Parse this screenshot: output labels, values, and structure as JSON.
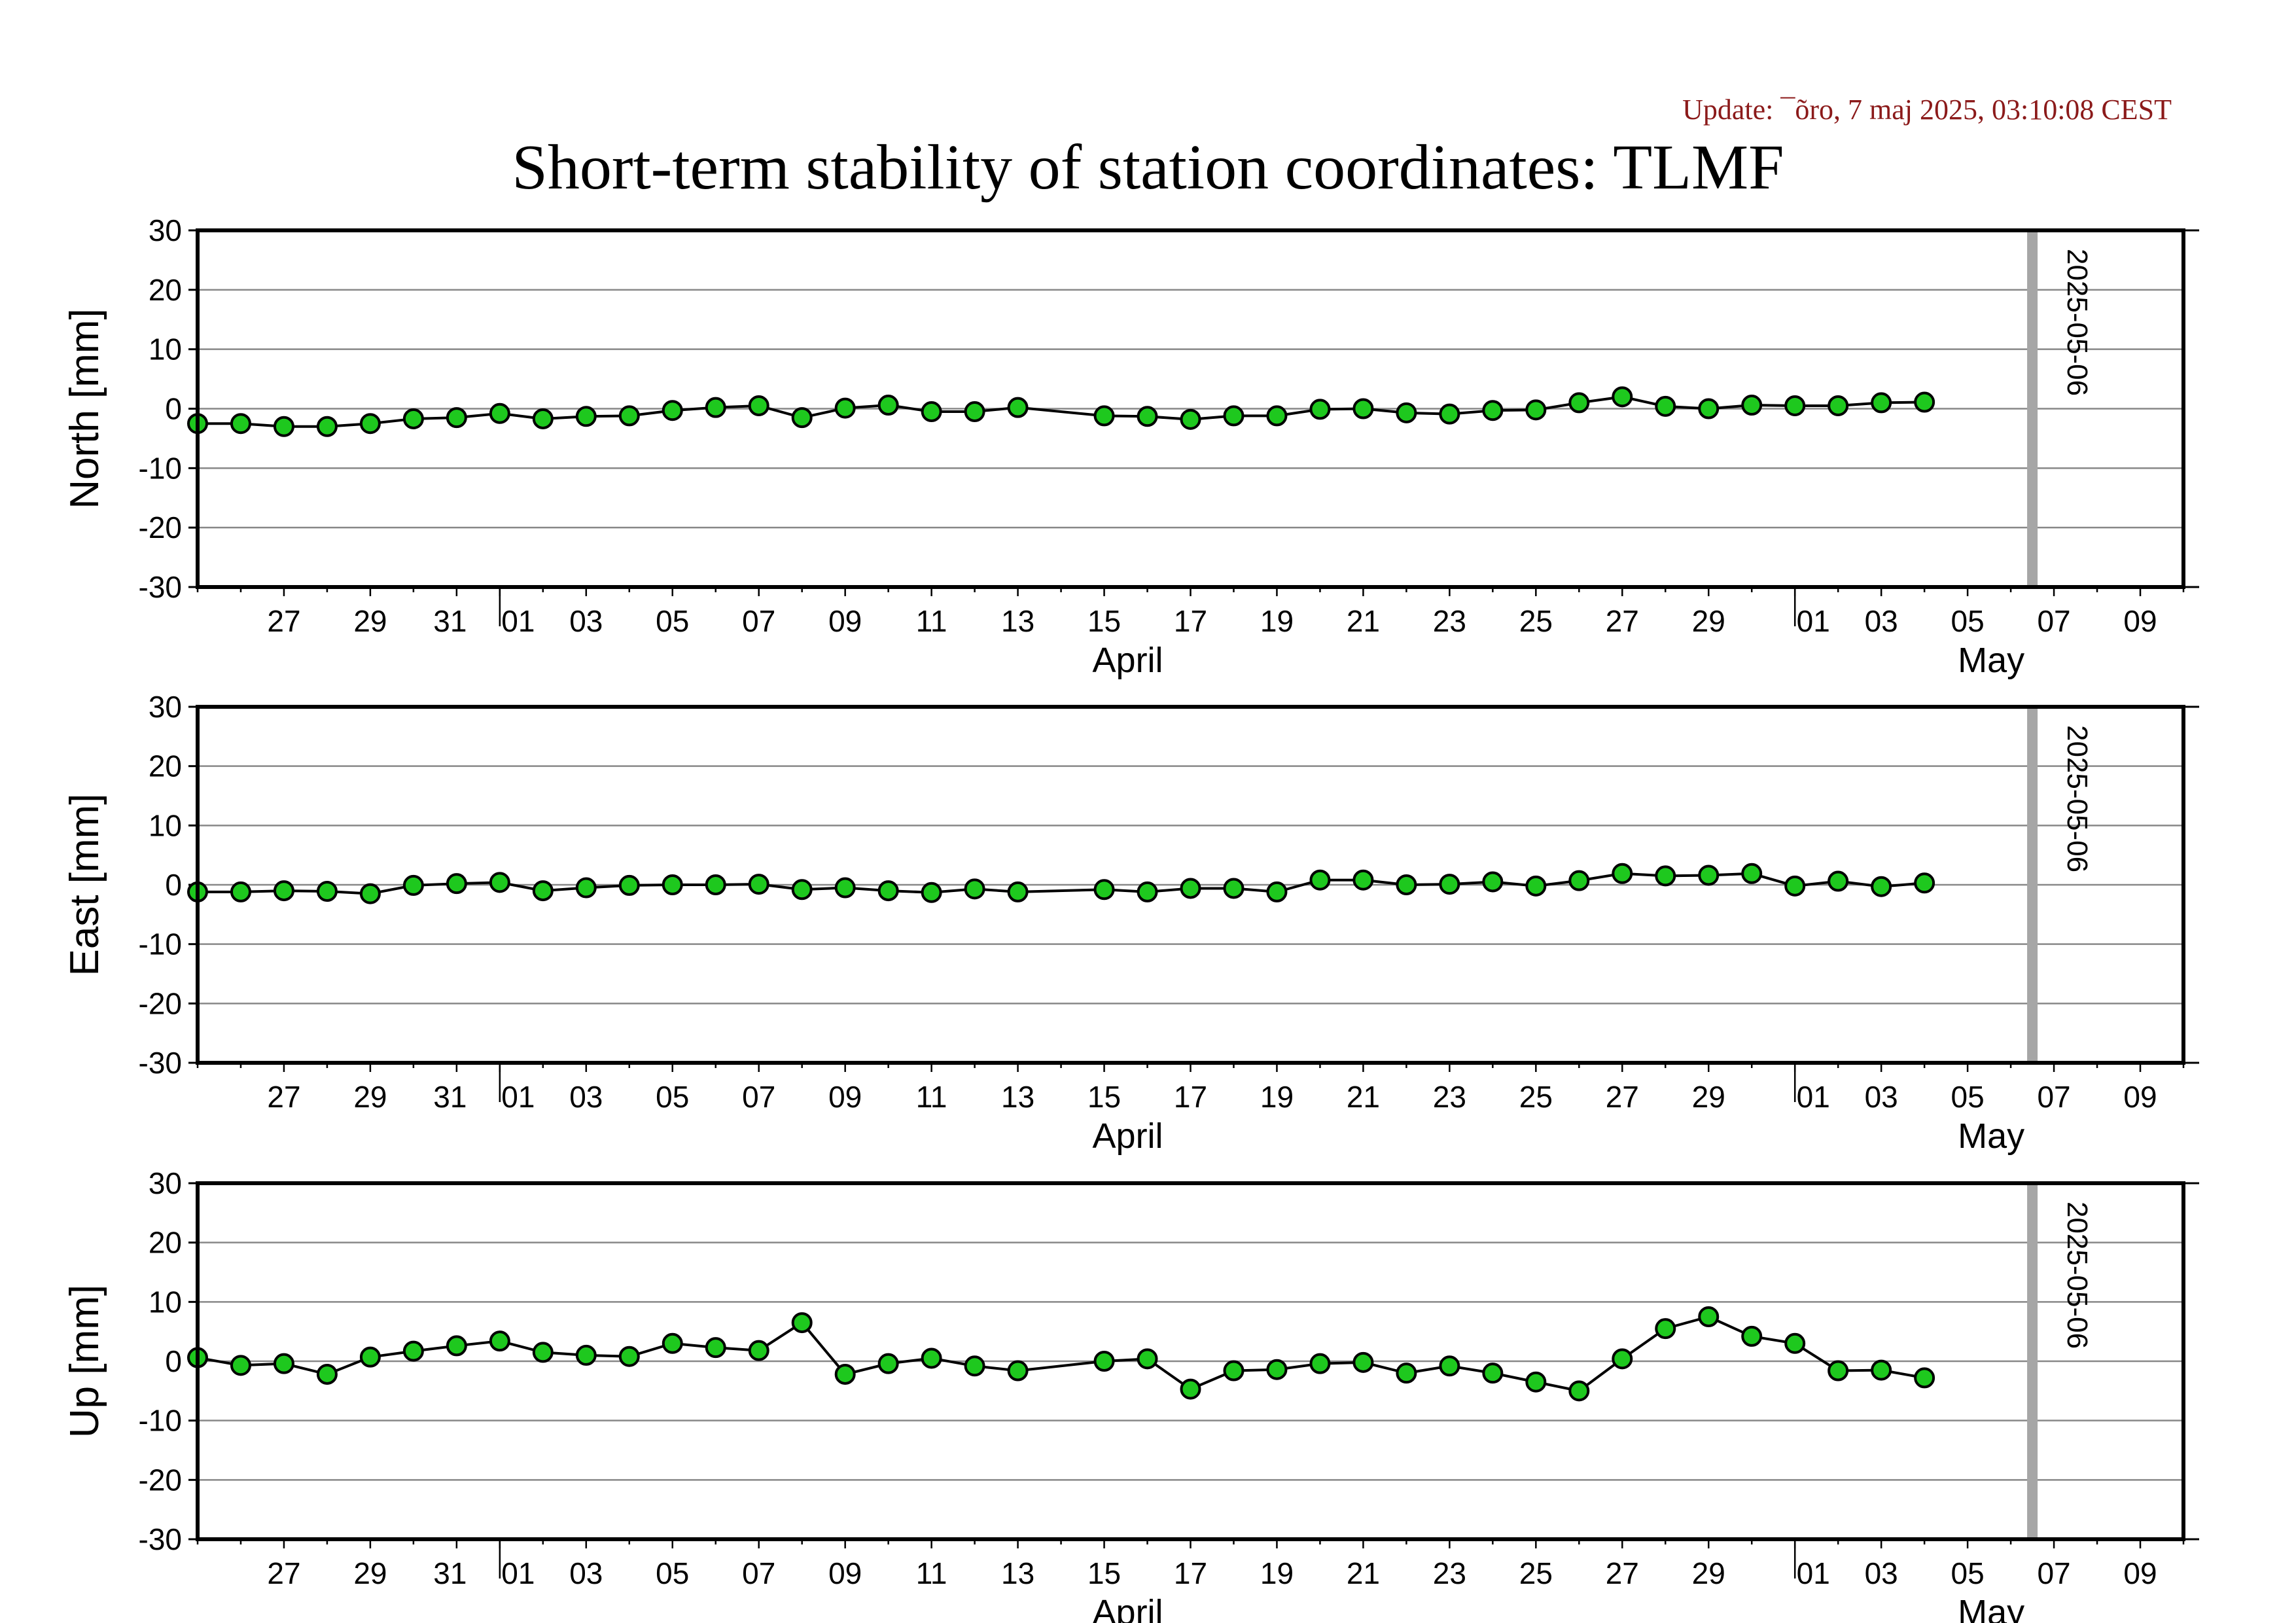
{
  "header": {
    "update": "Update: ¯õro, 7 maj 2025, 03:10:08 CEST",
    "title": "Short-term stability of station coordinates: TLMF"
  },
  "colors": {
    "marker_fill": "#1ec81e",
    "marker_edge": "#000000",
    "line": "#000000",
    "grid": "#888888",
    "current_day_line": "#a6a6a6",
    "update_text": "#8b1a1a"
  },
  "chart_data": [
    {
      "type": "line",
      "ylabel": "North [mm]",
      "ylim": [
        -30,
        30
      ],
      "yticks": [
        30,
        20,
        10,
        0,
        -10,
        -20,
        -30
      ],
      "grid": true,
      "xlim": [
        "2025-03-25",
        "2025-05-10"
      ],
      "x_tick_labels": [
        "27",
        "29",
        "31",
        "01",
        "03",
        "05",
        "07",
        "09",
        "11",
        "13",
        "15",
        "17",
        "19",
        "21",
        "23",
        "25",
        "27",
        "29",
        "01",
        "03",
        "05",
        "07",
        "09"
      ],
      "month_labels": [
        "April",
        "May"
      ],
      "marker_line": {
        "date": "2025-05-06",
        "label": "2025-05-06"
      },
      "series": [
        {
          "x": [
            "2025-03-25",
            "2025-03-26",
            "2025-03-27",
            "2025-03-28",
            "2025-03-29",
            "2025-03-30",
            "2025-03-31",
            "2025-04-01",
            "2025-04-02",
            "2025-04-03",
            "2025-04-04",
            "2025-04-05",
            "2025-04-06",
            "2025-04-07",
            "2025-04-08",
            "2025-04-09",
            "2025-04-10",
            "2025-04-11",
            "2025-04-12",
            "2025-04-13",
            "2025-04-15",
            "2025-04-16",
            "2025-04-17",
            "2025-04-18",
            "2025-04-19",
            "2025-04-20",
            "2025-04-21",
            "2025-04-22",
            "2025-04-23",
            "2025-04-24",
            "2025-04-25",
            "2025-04-26",
            "2025-04-27",
            "2025-04-28",
            "2025-04-29",
            "2025-04-30",
            "2025-05-01",
            "2025-05-02",
            "2025-05-03",
            "2025-05-04"
          ],
          "y": [
            -2.5,
            -2.5,
            -3,
            -3,
            -2.5,
            -1.7,
            -1.5,
            -0.8,
            -1.7,
            -1.3,
            -1.2,
            -0.3,
            0.2,
            0.5,
            -1.5,
            0.1,
            0.6,
            -0.5,
            -0.5,
            0.2,
            -1.2,
            -1.3,
            -1.8,
            -1.2,
            -1.2,
            -0.1,
            0,
            -0.7,
            -0.9,
            -0.3,
            -0.2,
            1,
            2,
            0.4,
            0,
            0.6,
            0.5,
            0.5,
            1,
            1.1
          ]
        }
      ]
    },
    {
      "type": "line",
      "ylabel": "East [mm]",
      "ylim": [
        -30,
        30
      ],
      "yticks": [
        30,
        20,
        10,
        0,
        -10,
        -20,
        -30
      ],
      "grid": true,
      "xlim": [
        "2025-03-25",
        "2025-05-10"
      ],
      "x_tick_labels": [
        "27",
        "29",
        "31",
        "01",
        "03",
        "05",
        "07",
        "09",
        "11",
        "13",
        "15",
        "17",
        "19",
        "21",
        "23",
        "25",
        "27",
        "29",
        "01",
        "03",
        "05",
        "07",
        "09"
      ],
      "month_labels": [
        "April",
        "May"
      ],
      "marker_line": {
        "date": "2025-05-06",
        "label": "2025-05-06"
      },
      "series": [
        {
          "x": [
            "2025-03-25",
            "2025-03-26",
            "2025-03-27",
            "2025-03-28",
            "2025-03-29",
            "2025-03-30",
            "2025-03-31",
            "2025-04-01",
            "2025-04-02",
            "2025-04-03",
            "2025-04-04",
            "2025-04-05",
            "2025-04-06",
            "2025-04-07",
            "2025-04-08",
            "2025-04-09",
            "2025-04-10",
            "2025-04-11",
            "2025-04-12",
            "2025-04-13",
            "2025-04-15",
            "2025-04-16",
            "2025-04-17",
            "2025-04-18",
            "2025-04-19",
            "2025-04-20",
            "2025-04-21",
            "2025-04-22",
            "2025-04-23",
            "2025-04-24",
            "2025-04-25",
            "2025-04-26",
            "2025-04-27",
            "2025-04-28",
            "2025-04-29",
            "2025-04-30",
            "2025-05-01",
            "2025-05-02",
            "2025-05-03",
            "2025-05-04"
          ],
          "y": [
            -1.2,
            -1.2,
            -1,
            -1.1,
            -1.5,
            -0.1,
            0.2,
            0.4,
            -1,
            -0.5,
            -0.1,
            0,
            0,
            0.1,
            -0.8,
            -0.5,
            -1,
            -1.3,
            -0.7,
            -1.2,
            -0.8,
            -1.2,
            -0.6,
            -0.6,
            -1.2,
            0.8,
            0.8,
            0,
            0.1,
            0.5,
            -0.2,
            0.7,
            1.9,
            1.5,
            1.6,
            1.9,
            -0.2,
            0.6,
            -0.3,
            0.3
          ]
        }
      ]
    },
    {
      "type": "line",
      "ylabel": "Up [mm]",
      "ylim": [
        -30,
        30
      ],
      "yticks": [
        30,
        20,
        10,
        0,
        -10,
        -20,
        -30
      ],
      "grid": true,
      "xlim": [
        "2025-03-25",
        "2025-05-10"
      ],
      "x_tick_labels": [
        "27",
        "29",
        "31",
        "01",
        "03",
        "05",
        "07",
        "09",
        "11",
        "13",
        "15",
        "17",
        "19",
        "21",
        "23",
        "25",
        "27",
        "29",
        "01",
        "03",
        "05",
        "07",
        "09"
      ],
      "month_labels": [
        "April",
        "May"
      ],
      "marker_line": {
        "date": "2025-05-06",
        "label": "2025-05-06"
      },
      "series": [
        {
          "x": [
            "2025-03-25",
            "2025-03-26",
            "2025-03-27",
            "2025-03-28",
            "2025-03-29",
            "2025-03-30",
            "2025-03-31",
            "2025-04-01",
            "2025-04-02",
            "2025-04-03",
            "2025-04-04",
            "2025-04-05",
            "2025-04-06",
            "2025-04-07",
            "2025-04-08",
            "2025-04-09",
            "2025-04-10",
            "2025-04-11",
            "2025-04-12",
            "2025-04-13",
            "2025-04-15",
            "2025-04-16",
            "2025-04-17",
            "2025-04-18",
            "2025-04-19",
            "2025-04-20",
            "2025-04-21",
            "2025-04-22",
            "2025-04-23",
            "2025-04-24",
            "2025-04-25",
            "2025-04-26",
            "2025-04-27",
            "2025-04-28",
            "2025-04-29",
            "2025-04-30",
            "2025-05-01",
            "2025-05-02",
            "2025-05-03",
            "2025-05-04"
          ],
          "y": [
            0.6,
            -0.7,
            -0.4,
            -2.2,
            0.7,
            1.7,
            2.6,
            3.4,
            1.5,
            1,
            0.8,
            3,
            2.3,
            1.8,
            6.5,
            -2.2,
            -0.4,
            0.5,
            -0.8,
            -1.6,
            0,
            0.4,
            -4.7,
            -1.6,
            -1.4,
            -0.4,
            -0.2,
            -2,
            -0.8,
            -2,
            -3.5,
            -5,
            0.4,
            5.5,
            7.5,
            4.2,
            3,
            -1.6,
            -1.5,
            -2.8
          ]
        }
      ]
    }
  ]
}
